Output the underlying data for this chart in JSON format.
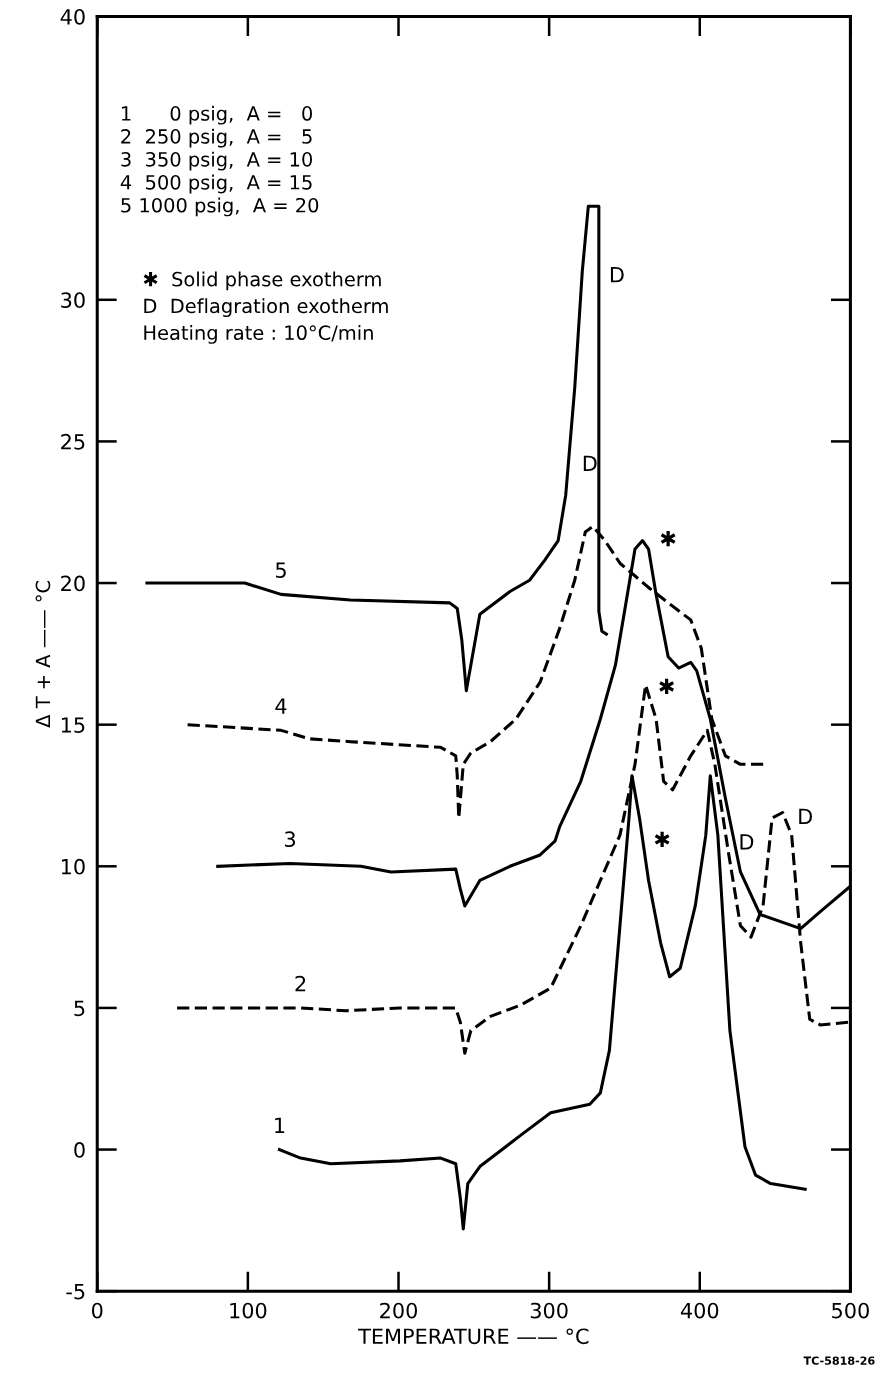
{
  "chart_data": {
    "type": "line",
    "xlabel": "TEMPERATURE —— °C",
    "ylabel": "Δ T + A —— °C",
    "xlim": [
      0,
      500
    ],
    "xticks": [
      0,
      100,
      200,
      300,
      400,
      500
    ],
    "ylim": [
      -5,
      40
    ],
    "yticks": [
      -5,
      0,
      5,
      10,
      15,
      20,
      25,
      30,
      40
    ],
    "grid": false,
    "legend": false,
    "marker": "none",
    "series": [
      {
        "name": "1",
        "color": "#000000",
        "line_style": "solid",
        "x": [
          121,
          135,
          155,
          201,
          228,
          238,
          241,
          243,
          246,
          254,
          281,
          301,
          327,
          334,
          340,
          347,
          353,
          355,
          360,
          366,
          374,
          380,
          387,
          397,
          404,
          407,
          412,
          420,
          430,
          437,
          447,
          470
        ],
        "values": [
          0.0,
          -0.3,
          -0.5,
          -0.4,
          -0.3,
          -0.5,
          -1.7,
          -2.8,
          -1.2,
          -0.6,
          0.5,
          1.3,
          1.6,
          2.0,
          3.5,
          7.9,
          11.7,
          13.2,
          11.7,
          9.5,
          7.3,
          6.1,
          6.4,
          8.6,
          11.1,
          13.2,
          11.1,
          4.2,
          0.1,
          -0.9,
          -1.2,
          -1.4
        ]
      },
      {
        "name": "2",
        "color": "#000000",
        "line_style": "dashed",
        "x": [
          53,
          135,
          165,
          201,
          238,
          241,
          244,
          248,
          261,
          281,
          301,
          321,
          334,
          347,
          357,
          364,
          371,
          376,
          382,
          394,
          405,
          410,
          419,
          427,
          434,
          442,
          448,
          455,
          461,
          467,
          473,
          480,
          500
        ],
        "values": [
          5.0,
          5.0,
          4.9,
          5.0,
          5.0,
          4.5,
          3.4,
          4.2,
          4.7,
          5.1,
          5.7,
          7.9,
          9.5,
          11.1,
          13.6,
          16.4,
          15.2,
          13.0,
          12.7,
          13.9,
          14.8,
          13.6,
          10.5,
          7.9,
          7.5,
          8.6,
          11.7,
          11.9,
          11.1,
          7.3,
          4.6,
          4.4,
          4.5
        ]
      },
      {
        "name": "3",
        "color": "#000000",
        "line_style": "solid",
        "x": [
          80,
          128,
          175,
          195,
          238,
          241,
          244,
          254,
          274,
          294,
          304,
          307,
          321,
          334,
          344,
          351,
          357,
          362,
          366,
          371,
          379,
          386,
          394,
          398,
          407,
          417,
          427,
          440,
          467,
          480,
          500
        ],
        "values": [
          10.0,
          10.1,
          10.0,
          9.8,
          9.9,
          9.2,
          8.6,
          9.5,
          10.0,
          10.4,
          10.9,
          11.4,
          13.0,
          15.2,
          17.1,
          19.3,
          21.2,
          21.5,
          21.2,
          19.6,
          17.4,
          17.0,
          17.2,
          16.9,
          15.2,
          12.4,
          9.8,
          8.3,
          7.8,
          8.4,
          9.3
        ]
      },
      {
        "name": "4",
        "color": "#000000",
        "line_style": "dashed",
        "x": [
          60,
          122,
          141,
          168,
          228,
          238,
          239,
          240,
          243,
          248,
          261,
          278,
          294,
          307,
          317,
          324,
          329,
          337,
          347,
          367,
          384,
          394,
          401,
          408,
          417,
          427,
          444
        ],
        "values": [
          15.0,
          14.8,
          14.5,
          14.4,
          14.2,
          13.9,
          13.2,
          11.7,
          13.6,
          14.0,
          14.4,
          15.2,
          16.5,
          18.4,
          20.1,
          21.8,
          22.0,
          21.5,
          20.7,
          19.8,
          19.1,
          18.7,
          17.7,
          15.2,
          13.9,
          13.6,
          13.6
        ]
      },
      {
        "name": "5",
        "color": "#000000",
        "line_style": "solid",
        "x": [
          33,
          98,
          122,
          168,
          234,
          239,
          242,
          245,
          248,
          254,
          274,
          287,
          297,
          306,
          311,
          317,
          322,
          326,
          333,
          333,
          335,
          338
        ],
        "values": [
          20.0,
          20.0,
          19.6,
          19.4,
          19.3,
          19.1,
          18.0,
          16.2,
          17.1,
          18.9,
          19.7,
          20.1,
          20.8,
          21.5,
          23.1,
          26.9,
          31.0,
          33.3,
          33.3,
          19.0,
          18.3,
          18.2
        ]
      }
    ],
    "annotations": [
      "1      0 psig,  A =   0",
      "2  250 psig,  A =   5",
      "3  350 psig,  A = 10",
      "4  500 psig,  A = 15",
      "5 1000 psig,  A = 20",
      "✱  Solid phase exotherm",
      "D  Deflagration exotherm",
      "Heating rate : 10°C/min",
      "D",
      "D",
      "✱",
      "✱",
      "✱",
      "D",
      "D",
      "TC-5818-26"
    ]
  }
}
